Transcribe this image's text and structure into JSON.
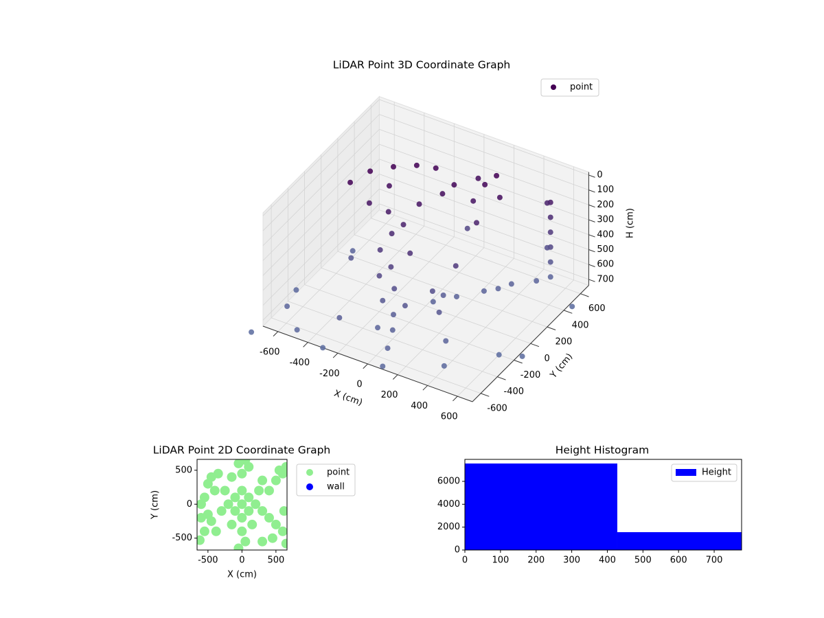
{
  "chart_data": [
    {
      "type": "scatter3d",
      "title": "LiDAR Point 3D Coordinate Graph",
      "x_label": "X (cm)",
      "y_label": "Y (cm)",
      "z_label": "H (cm)",
      "xlim": [
        -700,
        700
      ],
      "ylim": [
        -700,
        700
      ],
      "zlim": [
        740,
        -20
      ],
      "xticks": [
        -600,
        -400,
        -200,
        0,
        200,
        400,
        600
      ],
      "yticks": [
        -600,
        -400,
        -200,
        0,
        200,
        400,
        600
      ],
      "zticks": [
        0,
        100,
        200,
        300,
        400,
        500,
        600,
        700
      ],
      "grid": true,
      "legend": "upper right",
      "depth_color": "#6b9cc0",
      "series": [
        {
          "name": "point",
          "color": "#440154",
          "x": [
            -450,
            -400,
            -300,
            -200,
            -100,
            -300,
            -250,
            -200,
            -150,
            -350,
            -100,
            0,
            50,
            -50,
            -150,
            -200,
            -100,
            0,
            -250,
            200,
            250,
            150,
            100,
            300,
            200,
            500,
            500,
            500,
            500,
            500,
            500,
            450,
            450,
            60,
            150,
            250,
            350,
            450,
            100,
            300,
            100,
            50,
            0,
            -50,
            -100,
            -150,
            -700,
            -650,
            -500,
            -300,
            700,
            700,
            -750,
            -300,
            200,
            300,
            400,
            600,
            -500,
            0,
            -600,
            200,
            100
          ],
          "y": [
            -100,
            50,
            150,
            250,
            300,
            100,
            0,
            -50,
            0,
            -50,
            100,
            200,
            250,
            -100,
            -150,
            -200,
            -200,
            -250,
            -100,
            350,
            400,
            300,
            450,
            350,
            250,
            600,
            600,
            600,
            600,
            600,
            600,
            650,
            650,
            -20,
            100,
            250,
            400,
            520,
            30,
            330,
            -700,
            -550,
            -400,
            -300,
            -400,
            -250,
            -300,
            -500,
            -650,
            -700,
            500,
            -100,
            -750,
            -500,
            -200,
            -300,
            -500,
            -200,
            0,
            500,
            200,
            0,
            -100
          ],
          "z": [
            20,
            10,
            0,
            10,
            20,
            100,
            200,
            300,
            250,
            150,
            150,
            100,
            50,
            350,
            450,
            500,
            550,
            600,
            400,
            50,
            0,
            150,
            100,
            100,
            250,
            200,
            300,
            400,
            500,
            600,
            700,
            250,
            550,
            680,
            680,
            690,
            690,
            700,
            650,
            700,
            720,
            700,
            680,
            650,
            700,
            620,
            720,
            700,
            720,
            740,
            770,
            770,
            770,
            650,
            600,
            700,
            720,
            740,
            600,
            500,
            700,
            400,
            550
          ]
        }
      ]
    },
    {
      "type": "scatter",
      "title": "LiDAR Point 2D Coordinate Graph",
      "x_label": "X (cm)",
      "y_label": "Y (cm)",
      "xlim": [
        -660,
        663
      ],
      "ylim": [
        -675,
        660
      ],
      "xticks": [
        -500,
        0,
        500
      ],
      "yticks": [
        -500,
        0,
        500
      ],
      "legend": "outside upper right",
      "series": [
        {
          "name": "point",
          "color": "#90ee90",
          "x": [
            0,
            100,
            -100,
            100,
            -100,
            200,
            -200,
            0,
            0,
            250,
            -250,
            300,
            -300,
            150,
            -150,
            0,
            50,
            -50,
            0,
            -50,
            50,
            100,
            -150,
            -400,
            -500,
            -450,
            -350,
            -550,
            -600,
            -500,
            -600,
            -550,
            -620,
            -450,
            -380,
            400,
            500,
            600,
            650,
            550,
            300,
            400,
            500,
            620,
            600,
            450,
            650,
            300
          ],
          "y": [
            0,
            100,
            100,
            -100,
            -100,
            0,
            0,
            200,
            -200,
            200,
            200,
            -100,
            -100,
            -300,
            -300,
            -400,
            -550,
            -650,
            450,
            600,
            650,
            550,
            400,
            200,
            300,
            400,
            450,
            100,
            0,
            -150,
            -200,
            -400,
            -530,
            -250,
            -400,
            200,
            350,
            450,
            550,
            500,
            350,
            -200,
            -300,
            -100,
            -400,
            -500,
            -580,
            -550
          ]
        },
        {
          "name": "wall",
          "color": "#0000ff",
          "x": [],
          "y": []
        }
      ]
    },
    {
      "type": "histogram",
      "title": "Height Histogram",
      "bins": [
        0,
        428,
        777
      ],
      "series": [
        {
          "name": "Height",
          "color": "#0000ff",
          "values": [
            7560,
            1560
          ]
        }
      ],
      "xlim": [
        0,
        777
      ],
      "ylim": [
        0,
        7920
      ],
      "xticks": [
        0,
        100,
        200,
        300,
        400,
        500,
        600,
        700
      ],
      "yticks": [
        0,
        2000,
        4000,
        6000
      ],
      "legend": "upper right"
    }
  ]
}
